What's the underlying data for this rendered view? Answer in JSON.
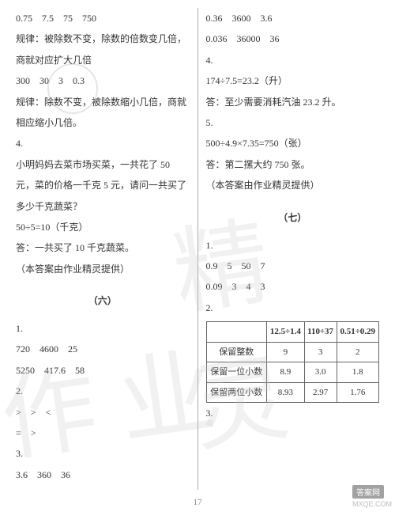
{
  "pageNumber": "17",
  "watermarks": {
    "left": "作业",
    "right": "精灵"
  },
  "badge": {
    "line1": "答案网",
    "line2": "MXQE.COM"
  },
  "left": {
    "lines": [
      "0.75    7.5    75    750",
      "规律：被除数不变，除数的倍数变几倍，商就对应扩大几倍",
      "300    30    3    0.3",
      "规律：除数不变，被除数缩小几倍，商就相应缩小几倍。",
      "4.",
      "小明妈妈去菜市场买菜，一共花了 50 元，菜的价格一千克 5 元，请问一共买了多少千克蔬菜？",
      "50÷5=10（千克）",
      "答：一共买了 10 千克蔬菜。",
      "（本答案由作业精灵提供）"
    ],
    "section6": {
      "title": "（六）",
      "items": [
        "1.",
        "720    4600    25",
        "5250    417.6    58",
        "2.",
        ">    >    <",
        "=    >",
        "3.",
        "3.6    360    36"
      ]
    }
  },
  "right": {
    "lines": [
      "0.36    3600    3.6",
      "0.036    36000    36",
      "4.",
      "174÷7.5=23.2（升）",
      "答：至少需要消耗汽油 23.2 升。",
      "5.",
      "500÷4.9×7.35=750（张）",
      "答：第二摞大约 750 张。",
      "（本答案由作业精灵提供）"
    ],
    "section7": {
      "title": "（七）",
      "preTable": [
        "1.",
        "0.9    5    50    7",
        "0.09    3    4    3",
        "2."
      ],
      "table": {
        "headers": [
          "",
          "12.5÷1.4",
          "110÷37",
          "0.51÷0.29"
        ],
        "rows": [
          {
            "label": "保留整数",
            "cells": [
              "9",
              "3",
              "2"
            ]
          },
          {
            "label": "保留一位小数",
            "cells": [
              "8.9",
              "3.0",
              "1.8"
            ]
          },
          {
            "label": "保留两位小数",
            "cells": [
              "8.93",
              "2.97",
              "1.76"
            ]
          }
        ]
      },
      "postTable": [
        "3."
      ]
    }
  }
}
